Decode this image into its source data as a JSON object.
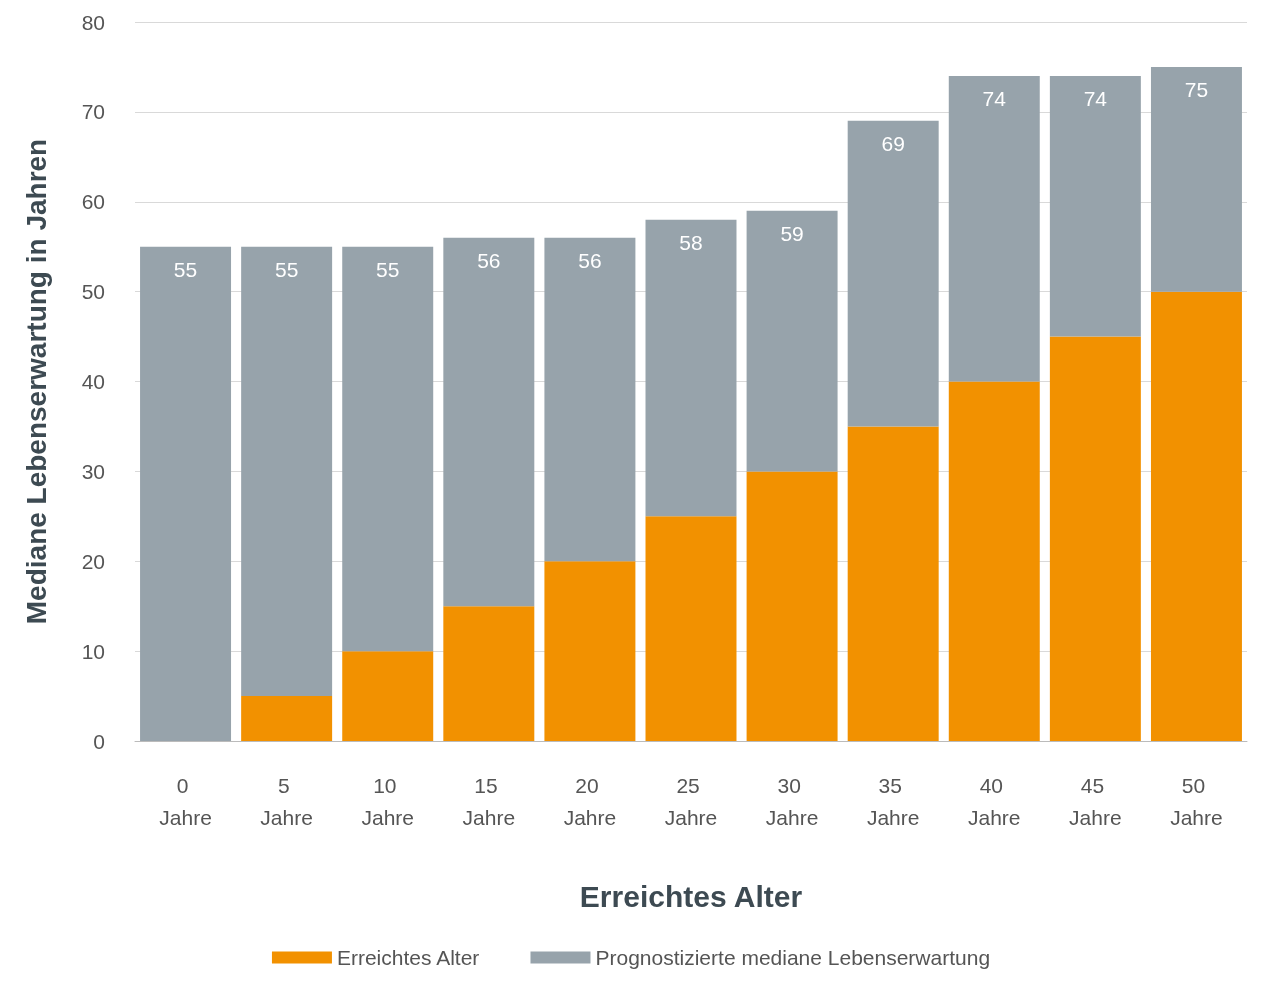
{
  "chart_data": {
    "type": "bar",
    "stacked": true,
    "xlabel": "Erreichtes Alter",
    "ylabel": "Mediane Lebenserwartung in Jahren",
    "categories": [
      "0 Jahre",
      "5 Jahre",
      "10 Jahre",
      "15 Jahre",
      "20 Jahre",
      "25 Jahre",
      "30 Jahre",
      "35 Jahre",
      "40 Jahre",
      "45 Jahre",
      "50 Jahre"
    ],
    "series": [
      {
        "name": "Erreichtes Alter",
        "color": "#f29100",
        "values": [
          0,
          5,
          10,
          15,
          20,
          25,
          30,
          35,
          40,
          45,
          50
        ]
      },
      {
        "name": "Prognostizierte mediane Lebenserwartung",
        "color": "#97a3ab",
        "values": [
          55,
          50,
          45,
          41,
          36,
          33,
          29,
          34,
          34,
          29,
          25
        ]
      }
    ],
    "totals": [
      "55",
      "55",
      "55",
      "56",
      "56",
      "58",
      "59",
      "69",
      "74",
      "74",
      "75"
    ],
    "ylim": [
      0,
      80
    ],
    "yticks": [
      0,
      10,
      20,
      30,
      40,
      50,
      60,
      70,
      80
    ],
    "grid": "y",
    "legend": "bottom"
  }
}
